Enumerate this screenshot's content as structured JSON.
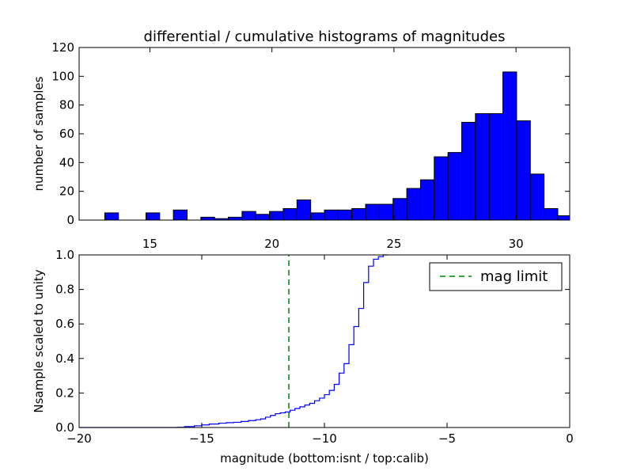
{
  "chart_data": [
    {
      "type": "bar",
      "title": "differential / cumulative histograms of magnitudes",
      "xlabel": "",
      "ylabel": "number of samples",
      "xlim": [
        12.1,
        32.2
      ],
      "ylim": [
        0,
        120
      ],
      "xticks": [
        "15",
        "20",
        "25",
        "30"
      ],
      "yticks": [
        "0",
        "20",
        "40",
        "60",
        "80",
        "100",
        "120"
      ],
      "bar_color": "#0000ff",
      "bins": {
        "start": 13.15,
        "width": 0.5625,
        "values": [
          5,
          0,
          0,
          5,
          0,
          7,
          0,
          2,
          1,
          2,
          6,
          4,
          6,
          8,
          14,
          5,
          7,
          7,
          8,
          11,
          11,
          15,
          22,
          28,
          44,
          47,
          68,
          74,
          74,
          103,
          69,
          32,
          8,
          3
        ]
      }
    },
    {
      "type": "line",
      "xlabel": "magnitude (bottom:isnt / top:calib)",
      "ylabel": "Nsample scaled to unity",
      "xlim": [
        -20,
        0
      ],
      "ylim": [
        0,
        1
      ],
      "xticks": [
        "−20",
        "−15",
        "−10",
        "−5",
        "0"
      ],
      "yticks": [
        "0.0",
        "0.2",
        "0.4",
        "0.6",
        "0.8",
        "1.0"
      ],
      "line_color": "#0000ff",
      "limit_color": "#008000",
      "series": [
        {
          "x": [
            -20,
            -16,
            -15.7,
            -15.3,
            -15.0,
            -14.7,
            -14.3,
            -14.0,
            -13.7,
            -13.4,
            -13.1,
            -12.8,
            -12.6,
            -12.4,
            -12.2,
            -12.0,
            -11.8,
            -11.6,
            -11.4,
            -11.2,
            -11.0,
            -10.8,
            -10.6,
            -10.4,
            -10.2,
            -10.0,
            -9.8,
            -9.6,
            -9.4,
            -9.2,
            -9.0,
            -8.8,
            -8.6,
            -8.4,
            -8.2,
            -8.0,
            -7.8,
            -7.6,
            -7.4
          ],
          "y": [
            0,
            0.001,
            0.005,
            0.01,
            0.015,
            0.02,
            0.025,
            0.028,
            0.03,
            0.035,
            0.04,
            0.045,
            0.05,
            0.06,
            0.07,
            0.08,
            0.085,
            0.09,
            0.1,
            0.11,
            0.12,
            0.13,
            0.14,
            0.155,
            0.17,
            0.19,
            0.215,
            0.25,
            0.315,
            0.37,
            0.48,
            0.585,
            0.69,
            0.84,
            0.935,
            0.975,
            0.99,
            1.0,
            1.0
          ]
        },
        {
          "name": "mag limit",
          "x": [
            -11.45,
            -11.45
          ],
          "y": [
            0,
            1
          ],
          "style": "dashed"
        }
      ],
      "legend_position": "upper-right"
    }
  ]
}
